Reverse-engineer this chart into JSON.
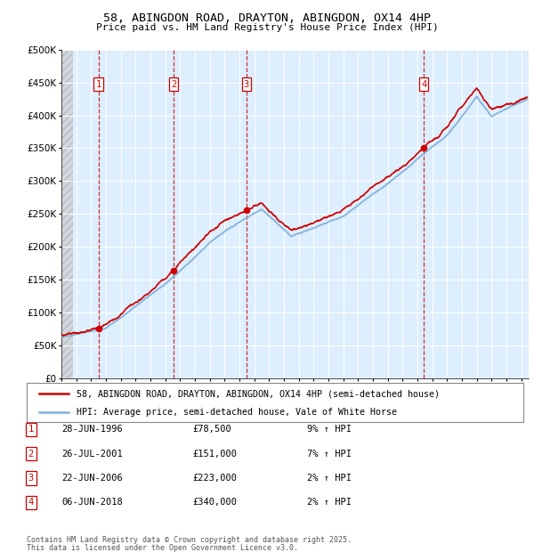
{
  "title": "58, ABINGDON ROAD, DRAYTON, ABINGDON, OX14 4HP",
  "subtitle": "Price paid vs. HM Land Registry's House Price Index (HPI)",
  "legend_line1": "58, ABINGDON ROAD, DRAYTON, ABINGDON, OX14 4HP (semi-detached house)",
  "legend_line2": "HPI: Average price, semi-detached house, Vale of White Horse",
  "footer1": "Contains HM Land Registry data © Crown copyright and database right 2025.",
  "footer2": "This data is licensed under the Open Government Licence v3.0.",
  "sale_markers": [
    {
      "num": 1,
      "date": "28-JUN-1996",
      "price": 78500,
      "pct": "9%",
      "x_year": 1996.49
    },
    {
      "num": 2,
      "date": "26-JUL-2001",
      "price": 151000,
      "pct": "7%",
      "x_year": 2001.57
    },
    {
      "num": 3,
      "date": "22-JUN-2006",
      "price": 223000,
      "pct": "2%",
      "x_year": 2006.47
    },
    {
      "num": 4,
      "date": "06-JUN-2018",
      "price": 340000,
      "pct": "2%",
      "x_year": 2018.43
    }
  ],
  "hpi_color": "#7fb0d8",
  "price_color": "#cc0000",
  "marker_color": "#cc0000",
  "dashed_color": "#cc0000",
  "bg_plot": "#ddeeff",
  "xmin": 1994.0,
  "xmax": 2025.5,
  "ymin": 0,
  "ymax": 500000,
  "yticks": [
    0,
    50000,
    100000,
    150000,
    200000,
    250000,
    300000,
    350000,
    400000,
    450000,
    500000
  ]
}
